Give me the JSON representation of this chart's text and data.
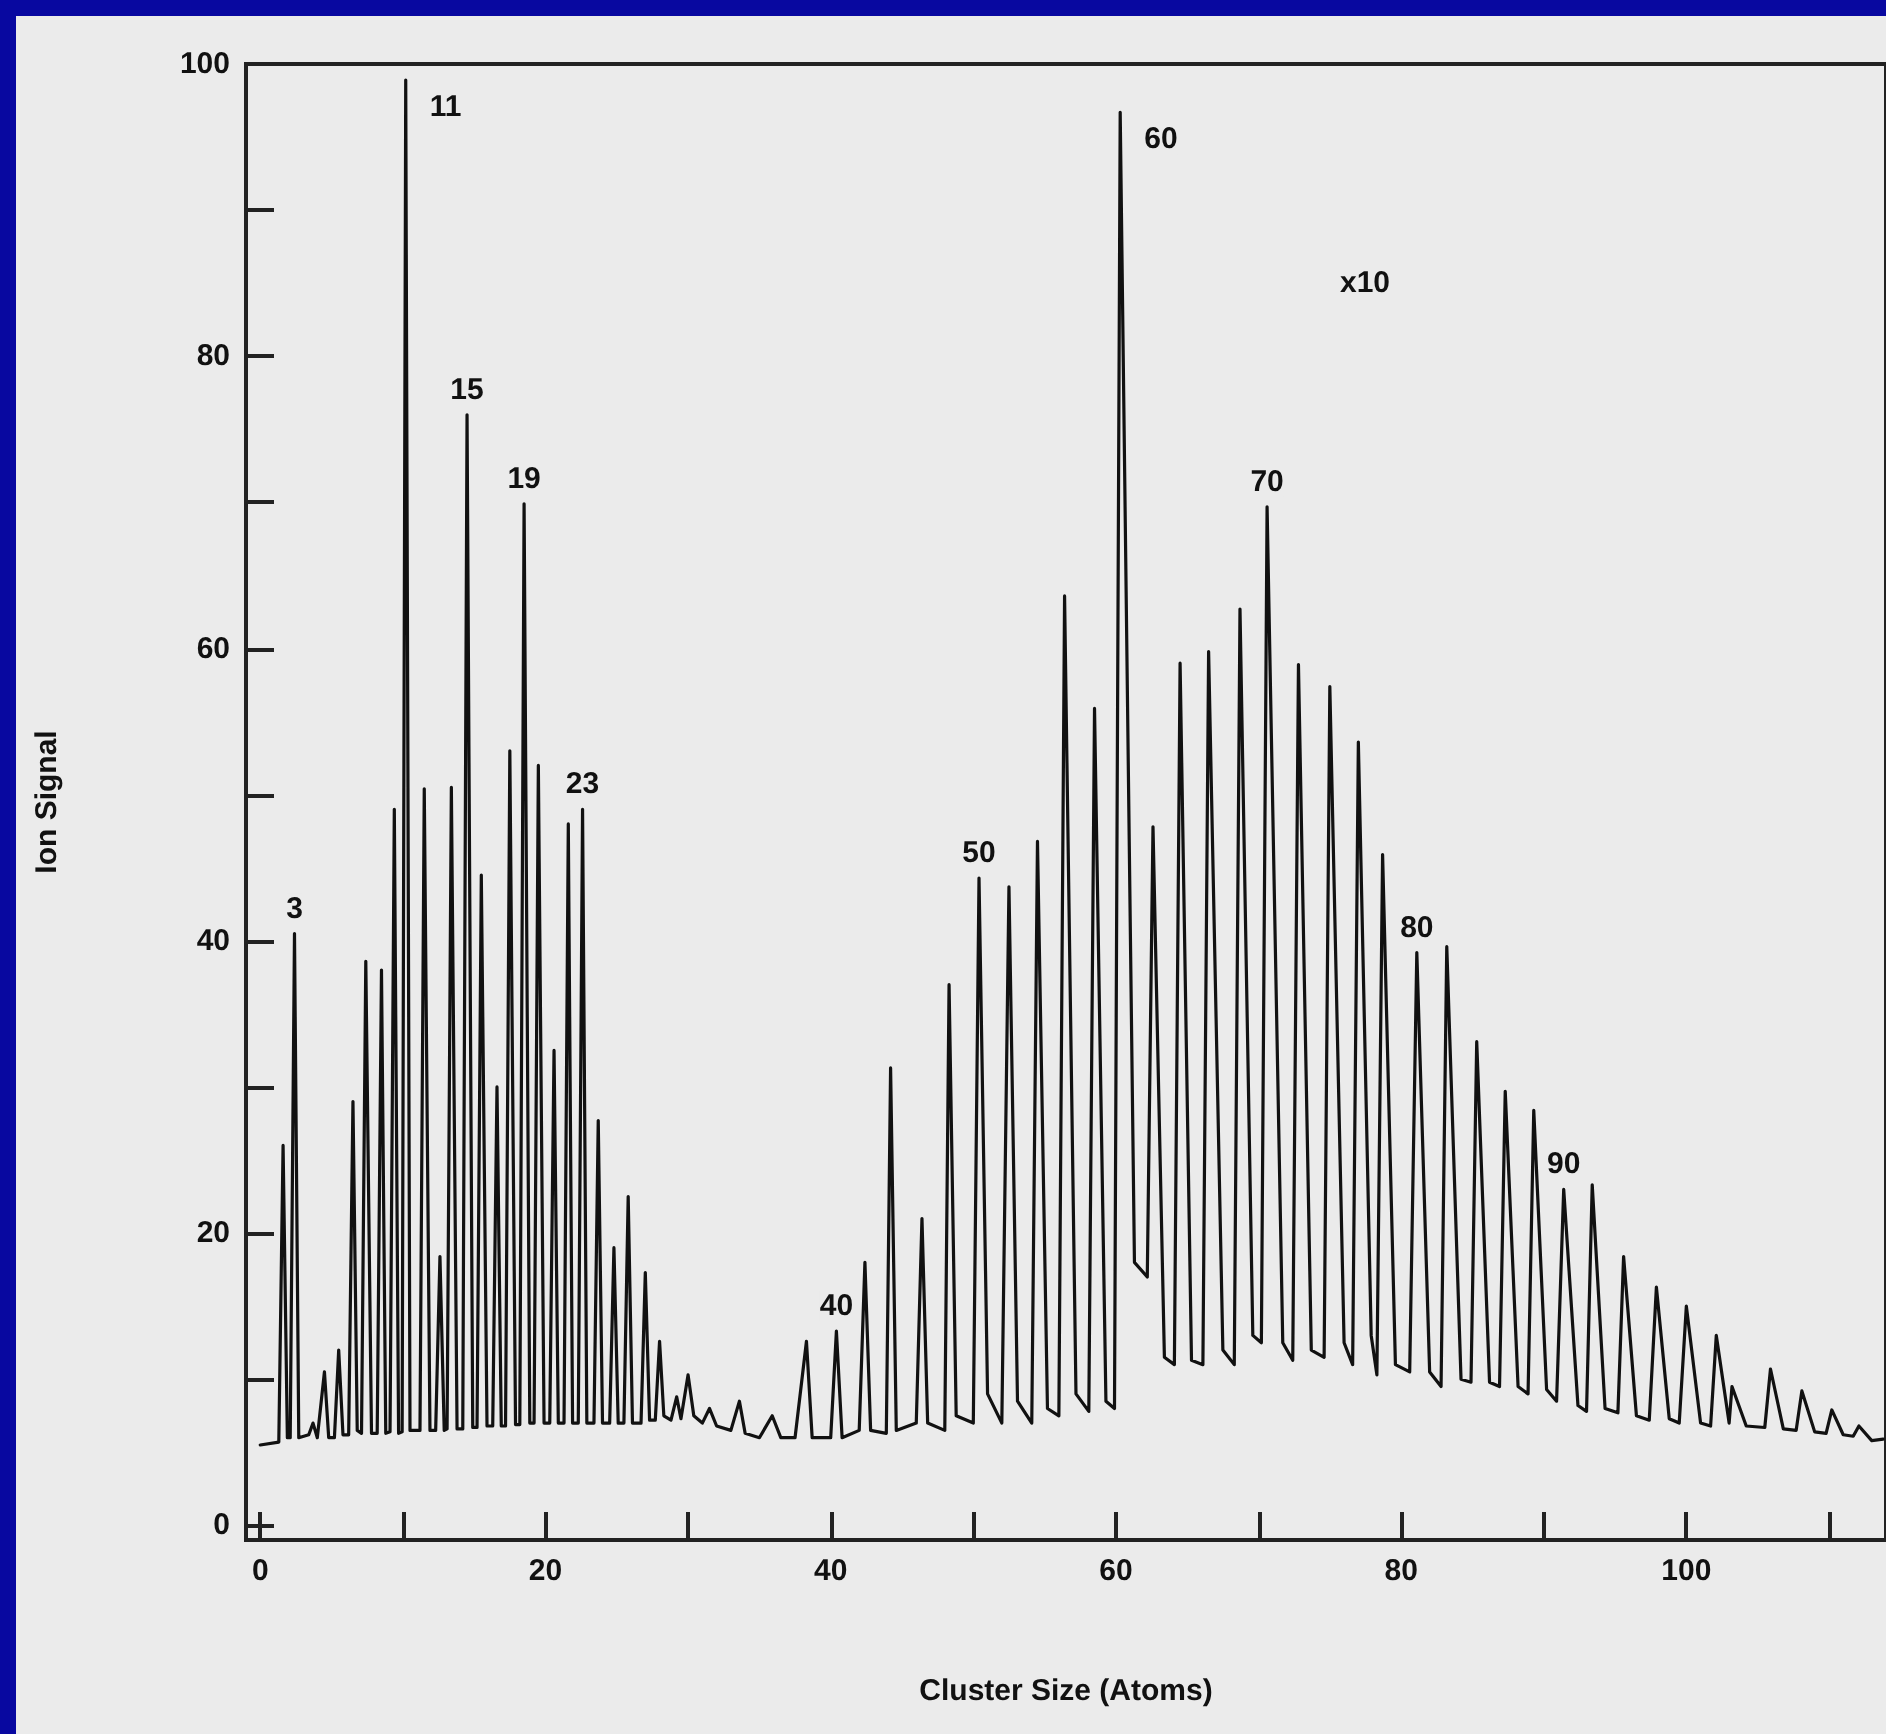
{
  "chart_data": {
    "type": "line",
    "xlabel": "Cluster Size (Atoms)",
    "ylabel": "Ion Signal",
    "xlim": [
      -1,
      114
    ],
    "ylim": [
      -1,
      100
    ],
    "xticks": [
      0,
      {
        "value": 10,
        "label": null
      },
      20,
      {
        "value": 30,
        "label": null
      },
      40,
      {
        "value": 50,
        "label": null
      },
      60,
      {
        "value": 70,
        "label": null
      },
      80,
      {
        "value": 90,
        "label": null
      },
      100,
      {
        "value": 110,
        "label": null
      }
    ],
    "yticks": [
      0,
      {
        "value": 10,
        "label": null
      },
      20,
      {
        "value": 30,
        "label": null
      },
      40,
      {
        "value": 50,
        "label": null
      },
      60,
      {
        "value": 70,
        "label": null
      },
      80,
      {
        "value": 90,
        "label": null
      },
      100
    ],
    "grid": false,
    "legend": false,
    "marker": "none",
    "line_style": "solid",
    "annotations": [
      {
        "text": "3",
        "x": 2.4,
        "y": 40.5
      },
      {
        "text": "11",
        "x": 10.2,
        "y": 98.9
      },
      {
        "text": "15",
        "x": 14.5,
        "y": 76
      },
      {
        "text": "19",
        "x": 18.5,
        "y": 69.9
      },
      {
        "text": "23",
        "x": 22.6,
        "y": 49
      },
      {
        "text": "40",
        "x": 40.4,
        "y": 13.3
      },
      {
        "text": "50",
        "x": 50.4,
        "y": 44.3
      },
      {
        "text": "60",
        "x": 60.3,
        "y": 96.7
      },
      {
        "text": "70",
        "x": 70.6,
        "y": 69.7
      },
      {
        "text": "80",
        "x": 81.1,
        "y": 39.2
      },
      {
        "text": "90",
        "x": 91.4,
        "y": 23
      },
      "x10"
    ],
    "series": [
      {
        "color": "#111111",
        "x": [
          0,
          1.3,
          1.6,
          1.9,
          2.1,
          2.4,
          2.7,
          3.4,
          3.7,
          4.0,
          4.5,
          4.8,
          5.2,
          5.5,
          5.8,
          6.2,
          6.5,
          6.8,
          7.1,
          7.4,
          7.8,
          8.2,
          8.5,
          8.8,
          9.1,
          9.4,
          9.7,
          9.95,
          10.2,
          10.5,
          11.2,
          11.5,
          11.9,
          12.3,
          12.6,
          12.9,
          13.1,
          13.4,
          13.8,
          14.2,
          14.5,
          14.9,
          15.2,
          15.5,
          15.9,
          16.3,
          16.6,
          16.9,
          17.2,
          17.5,
          17.9,
          18.2,
          18.5,
          18.9,
          19.2,
          19.5,
          19.9,
          20.3,
          20.6,
          20.9,
          21.3,
          21.6,
          21.9,
          22.3,
          22.6,
          22.9,
          23.4,
          23.7,
          24.0,
          24.5,
          24.8,
          25.1,
          25.5,
          25.8,
          26.1,
          26.7,
          27,
          27.3,
          27.7,
          28,
          28.3,
          28.8,
          29.2,
          29.5,
          30,
          30.4,
          31,
          31.5,
          32,
          33,
          33.6,
          34,
          35,
          35.9,
          36.5,
          37.5,
          38.3,
          38.7,
          40.0,
          40.4,
          40.8,
          42.0,
          42.4,
          42.8,
          43.9,
          44.2,
          44.6,
          46,
          46.4,
          46.8,
          48,
          48.3,
          48.8,
          50,
          50.4,
          51,
          52,
          52.5,
          53.1,
          54.1,
          54.5,
          55.2,
          56,
          56.4,
          57.2,
          58.1,
          58.5,
          59.3,
          59.9,
          60.3,
          61.3,
          62.2,
          62.6,
          63.4,
          64.1,
          64.5,
          65.3,
          66.1,
          66.5,
          67.5,
          68.3,
          68.7,
          69.6,
          70.2,
          70.6,
          71.7,
          72.4,
          72.8,
          73.7,
          74.6,
          75,
          76,
          76.6,
          77,
          77.9,
          78.3,
          78.7,
          79.6,
          80.6,
          81.1,
          82,
          82.8,
          83.2,
          84.2,
          84.9,
          85.3,
          86.2,
          86.9,
          87.3,
          88.2,
          88.9,
          89.3,
          90.2,
          90.9,
          91.4,
          92.4,
          93,
          93.4,
          94.3,
          95.2,
          95.6,
          96.5,
          97.4,
          97.9,
          98.8,
          99.5,
          100,
          101,
          101.7,
          102.1,
          103,
          103.2,
          104.2,
          105.5,
          105.9,
          106.8,
          107.7,
          108.1,
          109,
          109.8,
          110.2,
          111,
          111.7,
          112.1,
          113,
          113.8
        ],
        "values": [
          5.5,
          5.7,
          26,
          6,
          6,
          40.5,
          6,
          6.2,
          7,
          6,
          10.5,
          6,
          6,
          12,
          6.2,
          6.2,
          29,
          6.5,
          6.3,
          38.6,
          6.3,
          6.3,
          38,
          6.3,
          6.4,
          49,
          6.3,
          6.4,
          98.9,
          6.5,
          6.5,
          50.4,
          6.5,
          6.5,
          18.4,
          6.5,
          6.6,
          50.5,
          6.6,
          6.6,
          76,
          6.7,
          6.7,
          44.5,
          6.8,
          6.8,
          30,
          6.8,
          6.8,
          53,
          6.9,
          6.9,
          69.9,
          7,
          7,
          52,
          7,
          7,
          32.5,
          7,
          7,
          48,
          7,
          7,
          49,
          7,
          7,
          27.7,
          7,
          7,
          19,
          7,
          7,
          22.5,
          7,
          7,
          17.3,
          7.2,
          7.2,
          12.6,
          7.5,
          7.2,
          8.8,
          7.3,
          10.3,
          7.5,
          7,
          8,
          6.8,
          6.5,
          8.5,
          6.3,
          6,
          7.5,
          6,
          6,
          12.6,
          6,
          6,
          13.3,
          6,
          6.5,
          18,
          6.5,
          6.3,
          31.3,
          6.5,
          7,
          21,
          7,
          6.5,
          37,
          7.5,
          7,
          44.3,
          9,
          7,
          43.7,
          8.5,
          7,
          46.8,
          8,
          7.5,
          63.6,
          9,
          7.8,
          55.9,
          8.5,
          8,
          96.7,
          18,
          17,
          47.8,
          11.5,
          11,
          59,
          11.3,
          11,
          59.8,
          12,
          11,
          62.7,
          13,
          12.5,
          69.7,
          12.5,
          11.3,
          58.9,
          12,
          11.5,
          57.4,
          12.5,
          11,
          53.6,
          13,
          10.3,
          45.9,
          11,
          10.5,
          39.2,
          10.5,
          9.5,
          39.6,
          10,
          9.8,
          33.1,
          9.8,
          9.5,
          29.7,
          9.5,
          9,
          28.4,
          9.3,
          8.5,
          23,
          8.2,
          7.8,
          23.3,
          8,
          7.7,
          18.4,
          7.5,
          7.2,
          16.3,
          7.3,
          7,
          15,
          7,
          6.8,
          13,
          7,
          9.5,
          6.8,
          6.7,
          10.7,
          6.6,
          6.5,
          9.2,
          6.4,
          6.3,
          7.9,
          6.2,
          6.1,
          6.8,
          5.8,
          5.9
        ]
      }
    ]
  }
}
